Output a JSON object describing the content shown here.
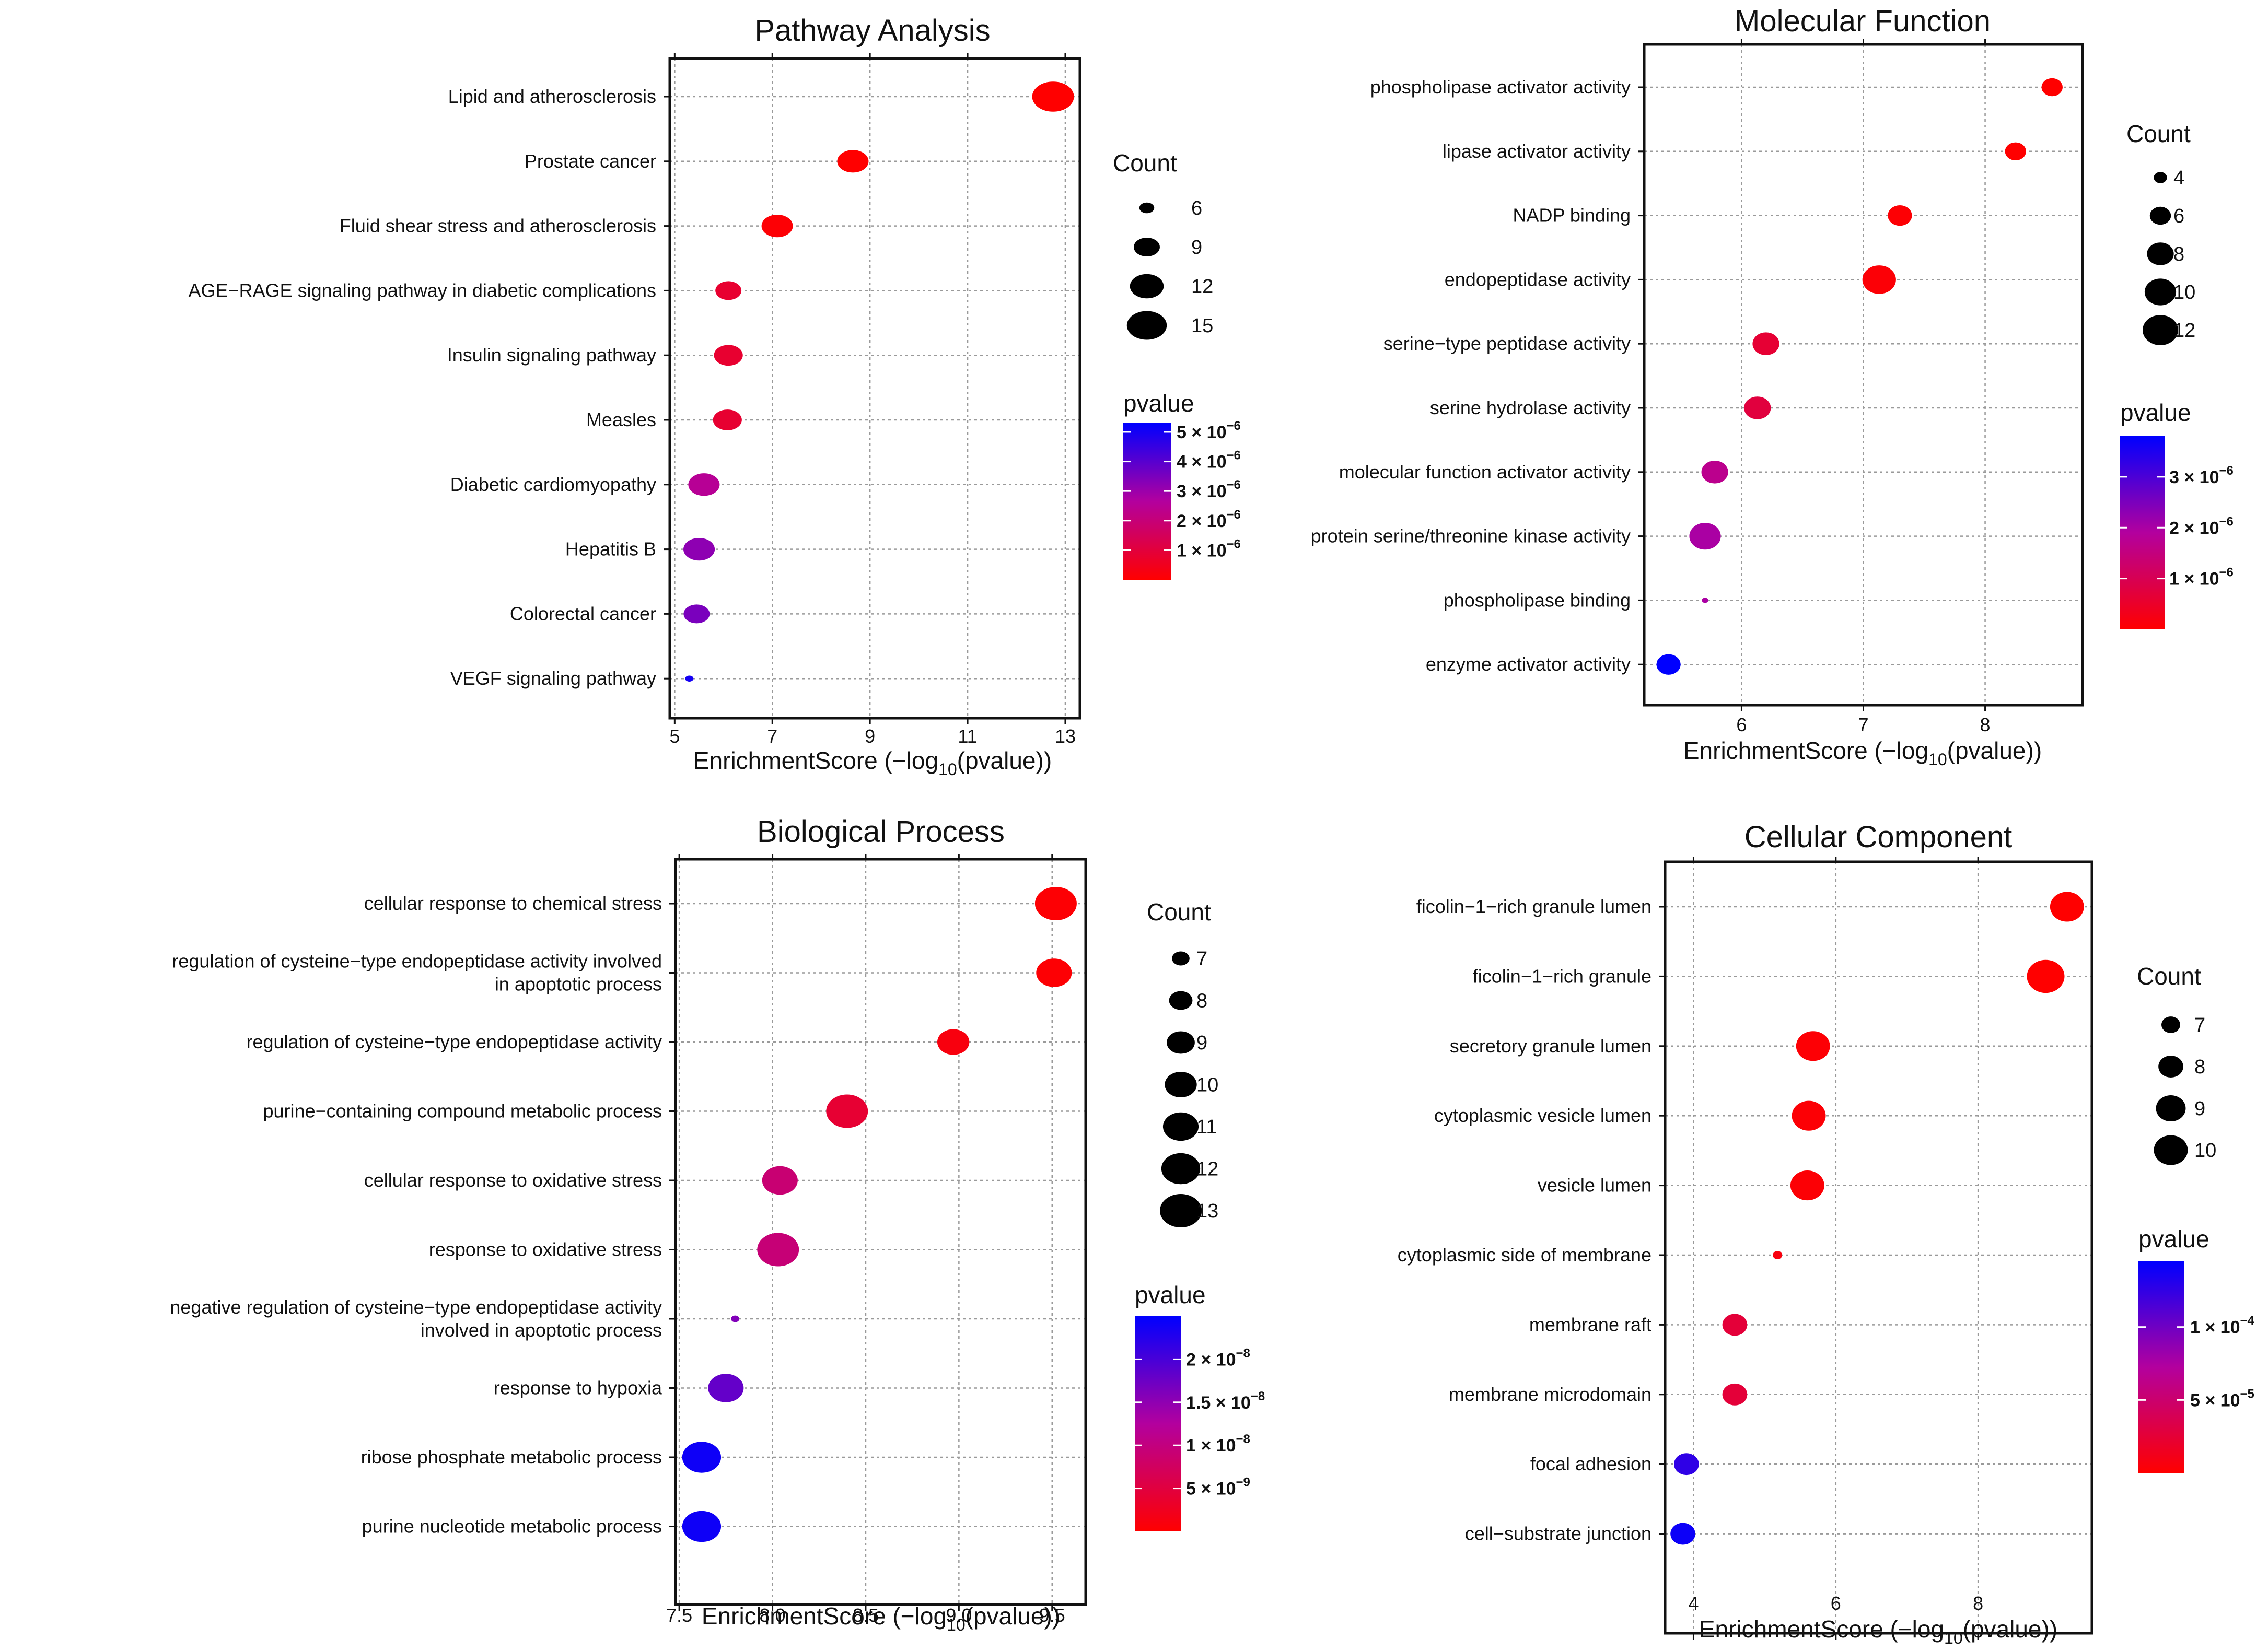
{
  "chart_data": [
    {
      "type": "scatter",
      "title": "Pathway Analysis",
      "xlabel_main": "EnrichmentScore (−log",
      "xlabel_sub": "10",
      "xlabel_tail": "(pvalue))",
      "xlim": [
        4.9,
        13.3
      ],
      "xticks": [
        5,
        7,
        9,
        11,
        13
      ],
      "tick_labels": [
        "5",
        "7",
        "9",
        "11",
        "13"
      ],
      "categories": [
        "Lipid and atherosclerosis",
        "Prostate cancer",
        "Fluid shear stress and atherosclerosis",
        "AGE−RAGE signaling pathway in diabetic complications",
        "Insulin signaling pathway",
        "Measles",
        "Diabetic cardiomyopathy",
        "Hepatitis B",
        "Colorectal cancer",
        "VEGF signaling pathway"
      ],
      "x": [
        12.75,
        8.65,
        7.1,
        6.1,
        6.1,
        6.08,
        5.6,
        5.5,
        5.45,
        5.3
      ],
      "count": [
        16,
        11,
        11,
        9,
        10,
        10,
        11,
        11,
        9,
        5
      ],
      "pvalue": [
        1.8e-13,
        2.2e-09,
        8e-08,
        8e-07,
        8e-07,
        8.3e-07,
        2.5e-06,
        3.2e-06,
        3.5e-06,
        5e-06
      ],
      "count_legend": {
        "title": "Count",
        "values": [
          6,
          9,
          12,
          15
        ],
        "labels": [
          "6",
          "9",
          "12",
          "15"
        ]
      },
      "pvalue_legend": {
        "title": "pvalue",
        "range": [
          0,
          5.3e-06
        ],
        "ticks": [
          {
            "value": 1e-06,
            "coef": "1",
            "exp": "−6"
          },
          {
            "value": 2e-06,
            "coef": "2",
            "exp": "−6"
          },
          {
            "value": 3e-06,
            "coef": "3",
            "exp": "−6"
          },
          {
            "value": 4e-06,
            "coef": "4",
            "exp": "−6"
          },
          {
            "value": 5e-06,
            "coef": "5",
            "exp": "−6"
          }
        ]
      },
      "colors": {
        "low": "#ff0000",
        "mid": "#b3009e",
        "high": "#0000ff"
      }
    },
    {
      "type": "scatter",
      "title": "Molecular Function",
      "xlabel_main": "EnrichmentScore (−log",
      "xlabel_sub": "10",
      "xlabel_tail": "(pvalue))",
      "xlim": [
        5.2,
        8.8
      ],
      "xticks": [
        6,
        7,
        8
      ],
      "tick_labels": [
        "6",
        "7",
        "8"
      ],
      "categories": [
        "phospholipase activator activity",
        "lipase activator activity",
        "NADP binding",
        "endopeptidase activity",
        "serine−type peptidase activity",
        "serine hydrolase activity",
        "molecular function activator activity",
        "protein serine/threonine kinase activity",
        "phospholipase binding",
        "enzyme activator activity"
      ],
      "x": [
        8.55,
        8.25,
        7.3,
        7.13,
        6.2,
        6.13,
        5.78,
        5.7,
        5.7,
        5.4
      ],
      "count": [
        6,
        6,
        7,
        11,
        8,
        8,
        8,
        10,
        3,
        7
      ],
      "pvalue": [
        2.8e-09,
        5.6e-09,
        5e-08,
        7.4e-08,
        6.3e-07,
        7.4e-07,
        1.7e-06,
        2e-06,
        2e-06,
        4e-06
      ],
      "count_legend": {
        "title": "Count",
        "values": [
          4,
          6,
          8,
          10,
          12
        ],
        "labels": [
          "4",
          "6",
          "8",
          "10",
          "12"
        ]
      },
      "pvalue_legend": {
        "title": "pvalue",
        "range": [
          0,
          3.8e-06
        ],
        "ticks": [
          {
            "value": 1e-06,
            "coef": "1",
            "exp": "−6"
          },
          {
            "value": 2e-06,
            "coef": "2",
            "exp": "−6"
          },
          {
            "value": 3e-06,
            "coef": "3",
            "exp": "−6"
          }
        ]
      },
      "colors": {
        "low": "#ff0000",
        "mid": "#b3009e",
        "high": "#0000ff"
      }
    },
    {
      "type": "scatter",
      "title": "Biological Process",
      "xlabel_main": "EnrichmentScore (−log",
      "xlabel_sub": "10",
      "xlabel_tail": "(pvalue))",
      "xlim": [
        7.48,
        9.68
      ],
      "xticks": [
        7.5,
        8.0,
        8.5,
        9.0,
        9.5
      ],
      "tick_labels": [
        "7.5",
        "8.0",
        "8.5",
        "9.0",
        "9.5"
      ],
      "categories": [
        "cellular response to chemical stress",
        "regulation of cysteine−type endopeptidase activity involved\nin apoptotic process",
        "regulation of cysteine−type endopeptidase activity",
        "purine−containing compound metabolic process",
        "cellular response to oxidative stress",
        "response to oxidative stress",
        "negative regulation of cysteine−type endopeptidase activity\ninvolved in apoptotic process",
        "response to hypoxia",
        "ribose phosphate metabolic process",
        "purine nucleotide metabolic process"
      ],
      "x": [
        9.52,
        9.51,
        8.97,
        8.4,
        8.04,
        8.03,
        7.8,
        7.75,
        7.62,
        7.62
      ],
      "count": [
        13,
        11,
        10,
        13,
        11,
        13,
        6,
        11,
        12,
        12
      ],
      "pvalue": [
        3e-10,
        3.1e-10,
        1.1e-09,
        4e-09,
        9e-09,
        9.3e-09,
        1.6e-08,
        1.8e-08,
        2.4e-08,
        2.4e-08
      ],
      "count_legend": {
        "title": "Count",
        "values": [
          7,
          8,
          9,
          10,
          11,
          12,
          13
        ],
        "labels": [
          "7",
          "8",
          "9",
          "10",
          "11",
          "12",
          "13"
        ]
      },
      "pvalue_legend": {
        "title": "pvalue",
        "range": [
          0,
          2.5e-08
        ],
        "ticks": [
          {
            "value": 5e-09,
            "coef": "5",
            "exp": "−9"
          },
          {
            "value": 1e-08,
            "coef": "1",
            "exp": "−8"
          },
          {
            "value": 1.5e-08,
            "coef": "1.5",
            "exp": "−8"
          },
          {
            "value": 2e-08,
            "coef": "2",
            "exp": "−8"
          }
        ]
      },
      "colors": {
        "low": "#ff0000",
        "mid": "#b3009e",
        "high": "#0000ff"
      }
    },
    {
      "type": "scatter",
      "title": "Cellular Component",
      "xlabel_main": "EnrichmentScore (−log",
      "xlabel_sub": "10",
      "xlabel_tail": "(pvalue))",
      "xlim": [
        3.6,
        9.6
      ],
      "xticks": [
        4,
        6,
        8
      ],
      "tick_labels": [
        "4",
        "6",
        "8"
      ],
      "categories": [
        "ficolin−1−rich granule lumen",
        "ficolin−1−rich granule",
        "secretory granule lumen",
        "cytoplasmic vesicle lumen",
        "vesicle lumen",
        "cytoplasmic side of membrane",
        "membrane raft",
        "membrane microdomain",
        "focal adhesion",
        "cell−substrate junction"
      ],
      "x": [
        9.25,
        8.95,
        5.68,
        5.62,
        5.6,
        5.18,
        4.58,
        4.58,
        3.9,
        3.85
      ],
      "count": [
        10,
        11,
        10,
        10,
        10,
        6,
        8,
        8,
        8,
        8
      ],
      "pvalue": [
        5.6e-10,
        1.1e-09,
        2.1e-06,
        2.4e-06,
        2.5e-06,
        6.6e-06,
        2.6e-05,
        2.6e-05,
        0.000126,
        0.00014
      ],
      "count_legend": {
        "title": "Count",
        "values": [
          7,
          8,
          9,
          10
        ],
        "labels": [
          "7",
          "8",
          "9",
          "10"
        ]
      },
      "pvalue_legend": {
        "title": "pvalue",
        "range": [
          0,
          0.000145
        ],
        "ticks": [
          {
            "value": 5e-05,
            "coef": "5",
            "exp": "−5"
          },
          {
            "value": 0.0001,
            "coef": "1",
            "exp": "−4"
          }
        ]
      },
      "colors": {
        "low": "#ff0000",
        "mid": "#b3009e",
        "high": "#0000ff"
      }
    }
  ]
}
